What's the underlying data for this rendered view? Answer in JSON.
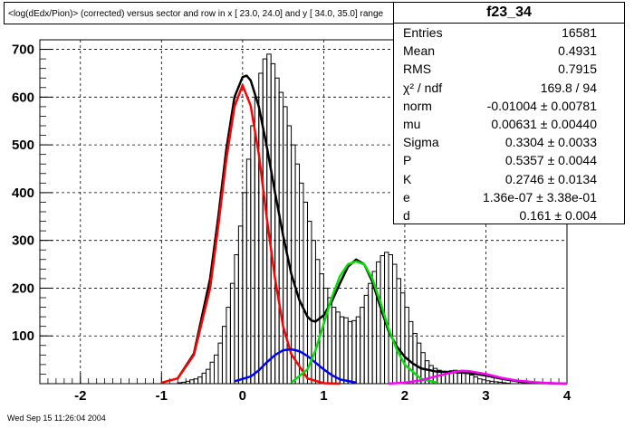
{
  "title": "<log(dEdx/Pion)> (corrected) versus sector and row in x [ 23.0, 24.0] and y [ 34.0, 35.0] range",
  "footer": "Wed Sep 15 11:26:04 2004",
  "stats": {
    "name": "f23_34",
    "rows": [
      {
        "label": "Entries",
        "value": "16581"
      },
      {
        "label": "Mean",
        "value": "0.4931"
      },
      {
        "label": "RMS",
        "value": "0.7915"
      },
      {
        "label": "χ² / ndf",
        "value": "169.8 / 94"
      },
      {
        "label": "norm",
        "value": "-0.01004 ± 0.00781"
      },
      {
        "label": "mu",
        "value": "0.00631 ± 0.00440"
      },
      {
        "label": "Sigma",
        "value": "0.3304 ± 0.0033"
      },
      {
        "label": "P",
        "value": "0.5357 ± 0.0044"
      },
      {
        "label": "K",
        "value": "0.2746 ± 0.0134"
      },
      {
        "label": "e",
        "value": "1.36e-07 ± 3.38e-01"
      },
      {
        "label": "d",
        "value": "0.161 ± 0.004"
      }
    ]
  },
  "chart_data": {
    "type": "line",
    "xlim": [
      -2.5,
      4.0
    ],
    "ylim": [
      0,
      720
    ],
    "xticks": [
      -2,
      -1,
      0,
      1,
      2,
      3,
      4
    ],
    "yticks": [
      100,
      200,
      300,
      400,
      500,
      600,
      700
    ],
    "grid": true,
    "histogram": {
      "bin_width": 0.05,
      "x_start": -0.8,
      "values": [
        2,
        3,
        5,
        8,
        10,
        14,
        22,
        30,
        45,
        60,
        85,
        120,
        160,
        210,
        270,
        330,
        400,
        470,
        540,
        600,
        650,
        680,
        690,
        670,
        640,
        610,
        580,
        540,
        500,
        460,
        420,
        380,
        340,
        300,
        260,
        230,
        200,
        180,
        160,
        150,
        140,
        138,
        130,
        132,
        140,
        160,
        185,
        210,
        235,
        255,
        268,
        275,
        270,
        250,
        220,
        190,
        160,
        130,
        105,
        85,
        65,
        48,
        38,
        32,
        28,
        26,
        25,
        27,
        28,
        27,
        25,
        22,
        18,
        14,
        10,
        8,
        6,
        5,
        4,
        3,
        2,
        1
      ]
    },
    "series": [
      {
        "color": "#000000",
        "x": [
          -0.8,
          -0.6,
          -0.4,
          -0.3,
          -0.2,
          -0.1,
          0,
          0.05,
          0.1,
          0.2,
          0.3,
          0.4,
          0.5,
          0.6,
          0.7,
          0.8,
          0.85,
          0.9,
          1.0,
          1.1,
          1.2,
          1.3,
          1.4,
          1.5,
          1.6,
          1.7,
          1.8,
          1.9,
          2.0,
          2.1,
          2.2,
          2.4,
          2.6,
          2.8,
          3.0,
          3.2,
          3.5,
          4.0
        ],
        "y": [
          11,
          63,
          220,
          349,
          491,
          600,
          642,
          645,
          635,
          580,
          495,
          400,
          310,
          230,
          175,
          140,
          132,
          130,
          143,
          172,
          210,
          245,
          260,
          250,
          214,
          160,
          110,
          78,
          56,
          42,
          32,
          25,
          24,
          22,
          17,
          10,
          2,
          0
        ]
      },
      {
        "color": "#ff0000",
        "x": [
          -1.0,
          -0.8,
          -0.6,
          -0.4,
          -0.3,
          -0.2,
          -0.1,
          0,
          0.1,
          0.2,
          0.3,
          0.4,
          0.5,
          0.6,
          0.8,
          1.0,
          1.2
        ],
        "y": [
          2,
          11,
          60,
          200,
          330,
          470,
          580,
          625,
          582,
          480,
          345,
          220,
          120,
          62,
          11,
          1,
          0
        ]
      },
      {
        "color": "#0000ff",
        "x": [
          -0.1,
          0.1,
          0.2,
          0.3,
          0.4,
          0.5,
          0.6,
          0.7,
          0.8,
          0.9,
          1.0,
          1.1,
          1.2,
          1.4
        ],
        "y": [
          5,
          15,
          28,
          45,
          60,
          70,
          72,
          68,
          58,
          44,
          30,
          18,
          9,
          2
        ]
      },
      {
        "color": "#00dd00",
        "x": [
          0.6,
          0.8,
          0.9,
          1.0,
          1.1,
          1.2,
          1.3,
          1.4,
          1.5,
          1.6,
          1.7,
          1.8,
          1.9,
          2.0,
          2.2,
          2.4
        ],
        "y": [
          2,
          30,
          70,
          125,
          180,
          225,
          250,
          256,
          250,
          220,
          170,
          115,
          72,
          40,
          10,
          2
        ]
      },
      {
        "color": "#ff00ff",
        "x": [
          1.8,
          2.0,
          2.2,
          2.4,
          2.6,
          2.7,
          2.8,
          3.0,
          3.2,
          3.4,
          3.6,
          3.8,
          4.0
        ],
        "y": [
          0,
          2,
          7,
          16,
          24,
          27,
          26,
          20,
          12,
          6,
          3,
          1,
          0
        ]
      }
    ]
  }
}
